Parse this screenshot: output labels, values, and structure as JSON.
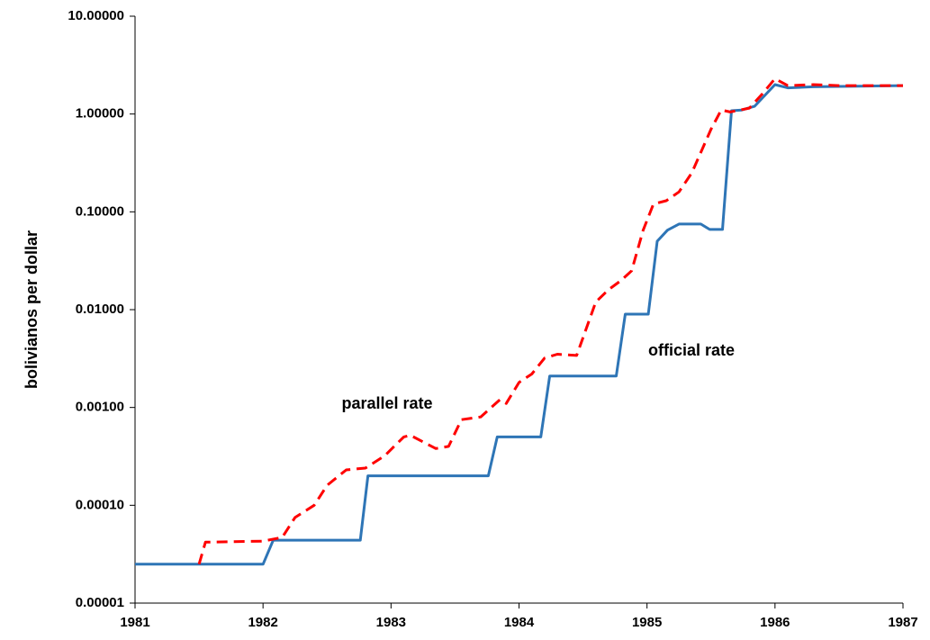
{
  "chart_data": {
    "type": "line",
    "y_label": "bolivianos per dollar",
    "log_y": true,
    "xlim": [
      1981,
      1987
    ],
    "xticks": [
      1981,
      1982,
      1983,
      1984,
      1985,
      1986,
      1987
    ],
    "ylim": [
      1e-05,
      10
    ],
    "yticks": [
      {
        "value": 1e-05,
        "label": "0.00001"
      },
      {
        "value": 0.0001,
        "label": "0.00010"
      },
      {
        "value": 0.001,
        "label": "0.00100"
      },
      {
        "value": 0.01,
        "label": "0.01000"
      },
      {
        "value": 0.1,
        "label": "0.10000"
      },
      {
        "value": 1,
        "label": "1.00000"
      },
      {
        "value": 10,
        "label": "10.00000"
      }
    ],
    "annotations": [
      "parallel rate",
      "official rate"
    ],
    "series": [
      {
        "name": "official rate",
        "color": "#2e75b6",
        "dash": false,
        "x": [
          1981,
          1982,
          1982.08,
          1982.76,
          1982.82,
          1983.76,
          1983.83,
          1984.17,
          1984.24,
          1984.76,
          1984.83,
          1985.01,
          1985.08,
          1985.16,
          1985.25,
          1985.42,
          1985.49,
          1985.59,
          1985.66,
          1985.74,
          1985.84,
          1986,
          1986.1,
          1986.3,
          1987
        ],
        "values": [
          2.5e-05,
          2.5e-05,
          4.4e-05,
          4.4e-05,
          0.0002,
          0.0002,
          0.0005,
          0.0005,
          0.0021,
          0.0021,
          0.009,
          0.009,
          0.05,
          0.065,
          0.075,
          0.075,
          0.066,
          0.066,
          1.08,
          1.1,
          1.2,
          2.0,
          1.85,
          1.9,
          1.95
        ]
      },
      {
        "name": "parallel rate",
        "color": "#ff0000",
        "dash": true,
        "x": [
          1981.5,
          1981.55,
          1982,
          1982.15,
          1982.25,
          1982.4,
          1982.5,
          1982.65,
          1982.8,
          1982.95,
          1983.1,
          1983.15,
          1983.35,
          1983.45,
          1983.55,
          1983.7,
          1983.85,
          1983.9,
          1984,
          1984.1,
          1984.2,
          1984.3,
          1984.45,
          1984.6,
          1984.7,
          1984.8,
          1984.88,
          1984.97,
          1985.05,
          1985.15,
          1985.25,
          1985.35,
          1985.5,
          1985.58,
          1985.65,
          1985.8,
          1985.9,
          1986,
          1986.1,
          1986.3,
          1986.5,
          1986.8,
          1987
        ],
        "values": [
          2.5e-05,
          4.2e-05,
          4.3e-05,
          4.7e-05,
          7.5e-05,
          0.0001,
          0.00016,
          0.00023,
          0.00024,
          0.00032,
          0.0005,
          0.00052,
          0.00038,
          0.0004,
          0.00075,
          0.0008,
          0.0012,
          0.0011,
          0.0018,
          0.0022,
          0.0032,
          0.0035,
          0.0034,
          0.012,
          0.016,
          0.02,
          0.025,
          0.065,
          0.12,
          0.13,
          0.16,
          0.25,
          0.7,
          1.1,
          1.05,
          1.15,
          1.6,
          2.3,
          1.95,
          2.0,
          1.95,
          1.95,
          1.95
        ]
      }
    ]
  }
}
